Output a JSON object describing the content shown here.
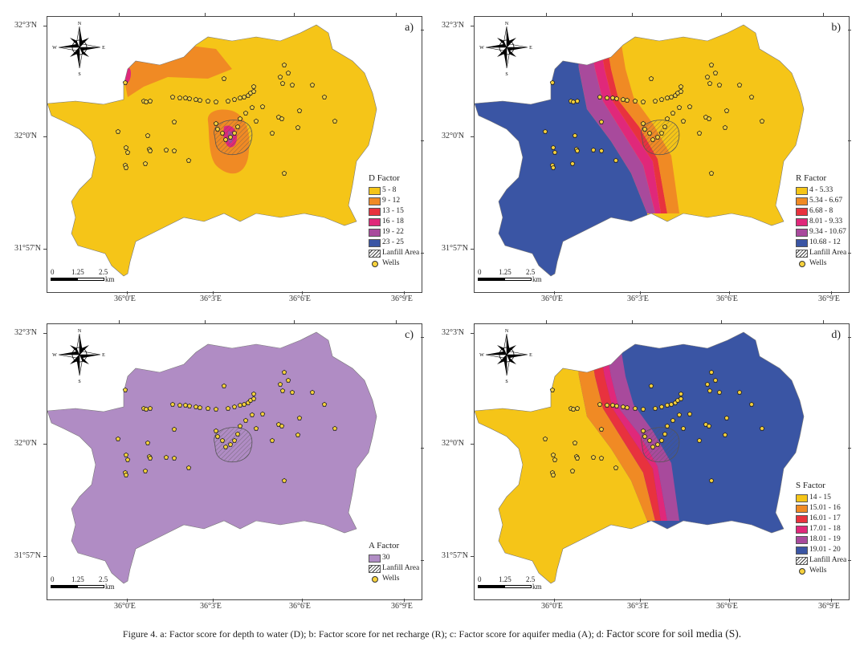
{
  "lat_labels": [
    "32°3'N",
    "32°0'N",
    "31°57'N"
  ],
  "lon_labels": [
    "36°0'E",
    "36°3'E",
    "36°6'E",
    "36°9'E"
  ],
  "compass": {
    "n": "N",
    "s": "S",
    "e": "E",
    "w": "W"
  },
  "scalebar": {
    "ticks": [
      "0",
      "1.25",
      "2.5"
    ],
    "unit": "km"
  },
  "panels": [
    {
      "id": "a",
      "label": "a)",
      "legend_title": "D Factor",
      "classes": [
        {
          "label": "5 - 8",
          "color": "#f5c518"
        },
        {
          "label": "9 - 12",
          "color": "#f08a24"
        },
        {
          "label": "13 - 15",
          "color": "#e8323e"
        },
        {
          "label": "16 - 18",
          "color": "#e0287a"
        },
        {
          "label": "19 - 22",
          "color": "#a84a9c"
        },
        {
          "label": "23 - 25",
          "color": "#3a55a4"
        }
      ],
      "landfill_label": "Lanfill Area",
      "wells_label": "Wells"
    },
    {
      "id": "b",
      "label": "b)",
      "legend_title": "R Factor",
      "classes": [
        {
          "label": "4 - 5.33",
          "color": "#f5c518"
        },
        {
          "label": "5.34 - 6.67",
          "color": "#f08a24"
        },
        {
          "label": "6.68 - 8",
          "color": "#e8323e"
        },
        {
          "label": "8.01 - 9.33",
          "color": "#e0287a"
        },
        {
          "label": "9.34 - 10.67",
          "color": "#a84a9c"
        },
        {
          "label": "10.68 - 12",
          "color": "#3a55a4"
        }
      ],
      "landfill_label": "Lanfill Area",
      "wells_label": "Wells"
    },
    {
      "id": "c",
      "label": "c)",
      "legend_title": "A Factor",
      "classes": [
        {
          "label": "30",
          "color": "#b08cc4"
        }
      ],
      "landfill_label": "Lanfill Area",
      "wells_label": "Wells"
    },
    {
      "id": "d",
      "label": "d)",
      "legend_title": "S Factor",
      "classes": [
        {
          "label": "14 - 15",
          "color": "#f5c518"
        },
        {
          "label": "15.01 - 16",
          "color": "#f08a24"
        },
        {
          "label": "16.01 - 17",
          "color": "#e8323e"
        },
        {
          "label": "17.01 - 18",
          "color": "#e0287a"
        },
        {
          "label": "18.01 - 19",
          "color": "#a84a9c"
        },
        {
          "label": "19.01 - 20",
          "color": "#3a55a4"
        }
      ],
      "landfill_label": "Lanfill Area",
      "wells_label": "Wells"
    }
  ],
  "caption": {
    "main": "Figure 4. a: Factor score for depth to water (D); b: Factor score for net recharge (R); c: Factor score for aquifer media (A); d:",
    "tail": "Factor score for soil media (S)."
  }
}
